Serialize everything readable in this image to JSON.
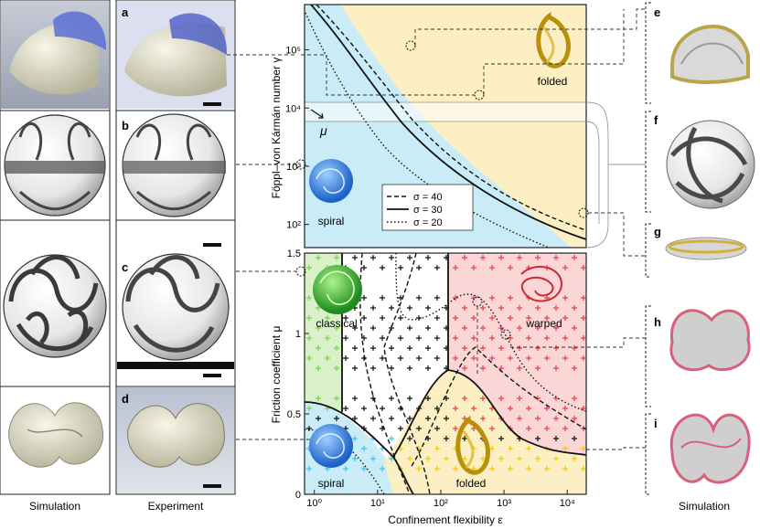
{
  "colors": {
    "spiral": "#c9ecf7",
    "folded": "#fcefc4",
    "classical": "#d9f0c8",
    "warped": "#fbd6d6",
    "frame": "#222222",
    "marker_black": "#111111",
    "marker_cyan": "#3fc1ee",
    "marker_yellow": "#f2c900",
    "marker_green": "#7ad04f",
    "marker_red": "#e8404a"
  },
  "panel_letters": [
    "a",
    "b",
    "c",
    "d",
    "e",
    "f",
    "g",
    "h",
    "i"
  ],
  "column_captions": {
    "left": "Simulation",
    "middle": "Experiment",
    "right": "Simulation"
  },
  "chart_data": [
    {
      "type": "scatter",
      "panel": "top",
      "ylabel": "Föppl–von Kármán number γ",
      "yscale": "log",
      "ylim": [
        40,
        600000
      ],
      "xscale": "log",
      "xlim": [
        0.7,
        20000
      ],
      "y_ticks": [
        "10²",
        "10³",
        "10⁴",
        "10⁵"
      ],
      "y_tick_values": [
        100,
        1000,
        10000,
        100000
      ],
      "region_labels": [
        "spiral",
        "folded"
      ],
      "band_label": "μ",
      "band_range": [
        4500,
        10000
      ],
      "legend": [
        {
          "label": "σ = 40",
          "style": "dashed"
        },
        {
          "label": "σ = 30",
          "style": "solid"
        },
        {
          "label": "σ = 20",
          "style": "dotted"
        }
      ],
      "phase_boundaries": [
        {
          "name": "σ = 40",
          "style": "dashed",
          "x": [
            2,
            10,
            100,
            1000,
            20000
          ],
          "y": [
            600000,
            200000,
            15000,
            1300,
            130
          ]
        },
        {
          "name": "σ = 30",
          "style": "solid",
          "x": [
            1.5,
            10,
            100,
            1000,
            15000
          ],
          "y": [
            600000,
            120000,
            9000,
            800,
            90
          ]
        },
        {
          "name": "σ = 20",
          "style": "dotted",
          "x": [
            1.2,
            10,
            100,
            1000,
            6000
          ],
          "y": [
            600000,
            40000,
            2200,
            230,
            40
          ]
        }
      ]
    },
    {
      "type": "scatter",
      "panel": "bottom",
      "xlabel": "Confinement flexibility ε",
      "ylabel": "Friction coefficient μ",
      "xscale": "log",
      "xlim": [
        0.7,
        20000
      ],
      "ylim": [
        0,
        1.5
      ],
      "x_ticks": [
        "10⁰",
        "10¹",
        "10²",
        "10³",
        "10⁴"
      ],
      "x_tick_values": [
        1,
        10,
        100,
        1000,
        10000
      ],
      "y_ticks": [
        "0",
        "0.5",
        "1",
        "1.5"
      ],
      "y_tick_values": [
        0,
        0.5,
        1,
        1.5
      ],
      "region_labels": [
        "classical",
        "warped",
        "spiral",
        "folded"
      ],
      "solid_boundaries": [
        {
          "x": [
            3,
            3,
            3
          ],
          "y": [
            0.4,
            1.0,
            1.5
          ]
        },
        {
          "x": [
            110,
            110,
            110
          ],
          "y": [
            0.75,
            1.1,
            1.5
          ]
        },
        {
          "x": [
            0.7,
            3,
            10,
            30,
            45
          ],
          "y": [
            0.56,
            0.5,
            0.35,
            0.12,
            0
          ]
        },
        {
          "x": [
            30,
            60,
            110,
            500,
            2000,
            20000
          ],
          "y": [
            0.3,
            0.6,
            0.8,
            0.45,
            0.28,
            0.23
          ]
        }
      ]
    }
  ]
}
